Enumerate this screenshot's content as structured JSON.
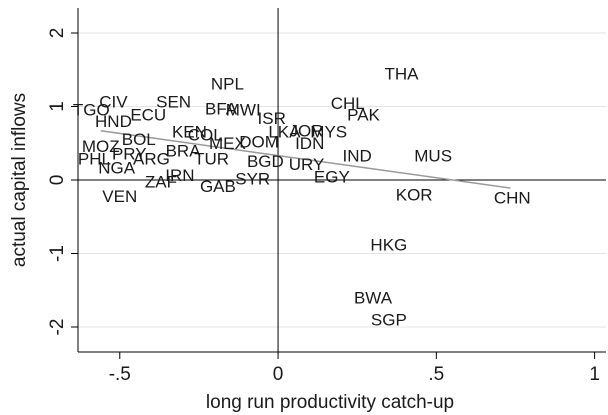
{
  "chart_data": {
    "type": "scatter",
    "x_label": "long run productivity catch-up",
    "y_label": "actual capital inflows",
    "labels": [
      "THA",
      "NPL",
      "CHL",
      "PAK",
      "CIV",
      "SEN",
      "TGO",
      "BFA",
      "MWI",
      "ISR",
      "ECU",
      "HND",
      "KEN",
      "COL",
      "MEX",
      "BOL",
      "BRA",
      "PRY",
      "ARG",
      "TUR",
      "PHL",
      "NGA",
      "MOZ",
      "LKA",
      "JOR",
      "MYS",
      "DOM",
      "IDN",
      "BGD",
      "URY",
      "IND",
      "MUS",
      "EGY",
      "SYR",
      "GAB",
      "ZAF",
      "IRN",
      "VEN",
      "KOR",
      "CHN",
      "HKG",
      "BWA",
      "SGP"
    ],
    "x": [
      0.39,
      -0.16,
      0.22,
      0.27,
      -0.52,
      -0.33,
      -0.59,
      -0.18,
      -0.11,
      -0.02,
      -0.41,
      -0.52,
      -0.28,
      -0.23,
      -0.16,
      -0.44,
      -0.3,
      -0.47,
      -0.4,
      -0.21,
      -0.58,
      -0.51,
      -0.56,
      0.02,
      0.09,
      0.16,
      -0.06,
      0.1,
      -0.04,
      0.09,
      0.25,
      0.49,
      0.17,
      -0.08,
      -0.19,
      -0.37,
      -0.31,
      -0.5,
      0.43,
      0.74,
      0.35,
      0.3,
      0.35
    ],
    "values": [
      1.43,
      1.29,
      1.03,
      0.87,
      1.05,
      1.05,
      0.94,
      0.95,
      0.94,
      0.82,
      0.87,
      0.78,
      0.64,
      0.6,
      0.48,
      0.54,
      0.38,
      0.34,
      0.27,
      0.27,
      0.27,
      0.15,
      0.44,
      0.64,
      0.65,
      0.64,
      0.5,
      0.48,
      0.24,
      0.2,
      0.31,
      0.31,
      0.03,
      0.0,
      -0.1,
      -0.04,
      0.05,
      -0.24,
      -0.22,
      -0.26,
      -0.9,
      -1.62,
      -1.92
    ],
    "label_color": "#1a1a1a",
    "fit_line": {
      "x": [
        -0.56,
        0.734
      ],
      "values": [
        0.67,
        -0.11
      ],
      "color": "#999999"
    },
    "reference_lines": {
      "x": 0,
      "y": 0
    },
    "xlim": [
      -0.632,
      1.036
    ],
    "ylim": [
      -2.34,
      2.34
    ],
    "xticks": [
      {
        "value": -0.5,
        "label": "-.5"
      },
      0,
      {
        "value": 0.5,
        "label": ".5"
      },
      1
    ],
    "yticks": [
      -2,
      -1,
      0,
      1,
      2
    ],
    "grid": true
  }
}
